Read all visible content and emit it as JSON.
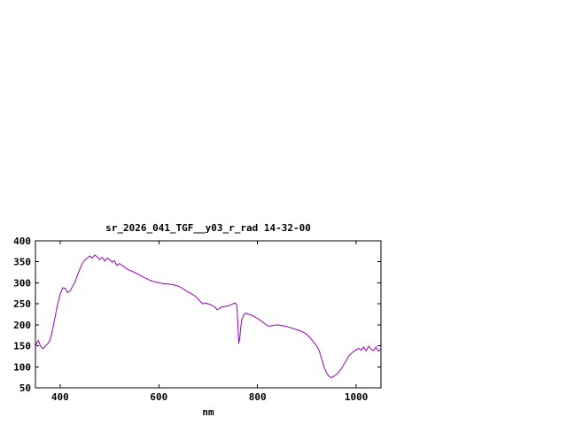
{
  "page": {
    "background": "#ffffff"
  },
  "chart_data": {
    "type": "line",
    "title": "sr_2026_041_TGF__y03_r_rad 14-32-00",
    "xlabel": "nm",
    "ylabel": "",
    "xlim": [
      350,
      1050
    ],
    "ylim": [
      50,
      400
    ],
    "xticks": [
      400,
      600,
      800,
      1000
    ],
    "yticks": [
      50,
      100,
      150,
      200,
      250,
      300,
      350,
      400
    ],
    "grid": false,
    "legend": "none",
    "line_color": "#9900bb",
    "border_color": "#000000",
    "series": [
      {
        "name": "sr_2026_041_TGF__y03_r_rad",
        "points": [
          [
            350,
            148
          ],
          [
            353,
            158
          ],
          [
            356,
            163
          ],
          [
            360,
            150
          ],
          [
            365,
            143
          ],
          [
            370,
            149
          ],
          [
            375,
            155
          ],
          [
            380,
            165
          ],
          [
            385,
            190
          ],
          [
            390,
            220
          ],
          [
            395,
            250
          ],
          [
            400,
            272
          ],
          [
            405,
            288
          ],
          [
            410,
            287
          ],
          [
            415,
            277
          ],
          [
            420,
            280
          ],
          [
            425,
            291
          ],
          [
            430,
            302
          ],
          [
            435,
            318
          ],
          [
            440,
            333
          ],
          [
            445,
            346
          ],
          [
            450,
            354
          ],
          [
            455,
            359
          ],
          [
            460,
            364
          ],
          [
            465,
            359
          ],
          [
            470,
            366
          ],
          [
            475,
            362
          ],
          [
            480,
            355
          ],
          [
            485,
            361
          ],
          [
            490,
            352
          ],
          [
            495,
            359
          ],
          [
            500,
            356
          ],
          [
            505,
            349
          ],
          [
            510,
            353
          ],
          [
            515,
            341
          ],
          [
            520,
            346
          ],
          [
            525,
            342
          ],
          [
            530,
            338
          ],
          [
            535,
            333
          ],
          [
            540,
            330
          ],
          [
            545,
            328
          ],
          [
            550,
            325
          ],
          [
            555,
            322
          ],
          [
            560,
            319
          ],
          [
            565,
            316
          ],
          [
            570,
            313
          ],
          [
            575,
            310
          ],
          [
            580,
            307
          ],
          [
            585,
            305
          ],
          [
            590,
            303
          ],
          [
            595,
            302
          ],
          [
            600,
            300
          ],
          [
            610,
            298
          ],
          [
            620,
            297
          ],
          [
            630,
            295
          ],
          [
            640,
            292
          ],
          [
            650,
            285
          ],
          [
            655,
            281
          ],
          [
            660,
            278
          ],
          [
            665,
            275
          ],
          [
            670,
            271
          ],
          [
            675,
            267
          ],
          [
            680,
            261
          ],
          [
            685,
            254
          ],
          [
            690,
            250
          ],
          [
            695,
            252
          ],
          [
            700,
            250
          ],
          [
            705,
            248
          ],
          [
            710,
            245
          ],
          [
            715,
            240
          ],
          [
            718,
            236
          ],
          [
            722,
            238
          ],
          [
            726,
            242
          ],
          [
            730,
            243
          ],
          [
            735,
            244
          ],
          [
            740,
            245
          ],
          [
            745,
            247
          ],
          [
            750,
            250
          ],
          [
            755,
            252
          ],
          [
            758,
            246
          ],
          [
            760,
            205
          ],
          [
            762,
            155
          ],
          [
            764,
            170
          ],
          [
            766,
            195
          ],
          [
            768,
            212
          ],
          [
            772,
            224
          ],
          [
            776,
            228
          ],
          [
            780,
            226
          ],
          [
            785,
            224
          ],
          [
            790,
            222
          ],
          [
            795,
            218
          ],
          [
            800,
            215
          ],
          [
            805,
            211
          ],
          [
            810,
            207
          ],
          [
            815,
            202
          ],
          [
            820,
            198
          ],
          [
            825,
            197
          ],
          [
            830,
            198
          ],
          [
            835,
            199
          ],
          [
            840,
            200
          ],
          [
            845,
            199
          ],
          [
            850,
            198
          ],
          [
            855,
            197
          ],
          [
            860,
            196
          ],
          [
            865,
            194
          ],
          [
            870,
            192
          ],
          [
            875,
            190
          ],
          [
            880,
            188
          ],
          [
            885,
            186
          ],
          [
            890,
            184
          ],
          [
            895,
            181
          ],
          [
            900,
            177
          ],
          [
            905,
            171
          ],
          [
            910,
            164
          ],
          [
            915,
            157
          ],
          [
            920,
            149
          ],
          [
            925,
            137
          ],
          [
            930,
            119
          ],
          [
            935,
            99
          ],
          [
            940,
            85
          ],
          [
            945,
            77
          ],
          [
            950,
            74
          ],
          [
            955,
            78
          ],
          [
            960,
            82
          ],
          [
            965,
            88
          ],
          [
            970,
            96
          ],
          [
            975,
            106
          ],
          [
            980,
            116
          ],
          [
            985,
            126
          ],
          [
            990,
            132
          ],
          [
            995,
            137
          ],
          [
            1000,
            141
          ],
          [
            1005,
            144
          ],
          [
            1010,
            140
          ],
          [
            1015,
            147
          ],
          [
            1020,
            138
          ],
          [
            1025,
            149
          ],
          [
            1030,
            142
          ],
          [
            1035,
            139
          ],
          [
            1040,
            147
          ],
          [
            1045,
            137
          ],
          [
            1050,
            143
          ]
        ]
      }
    ]
  }
}
